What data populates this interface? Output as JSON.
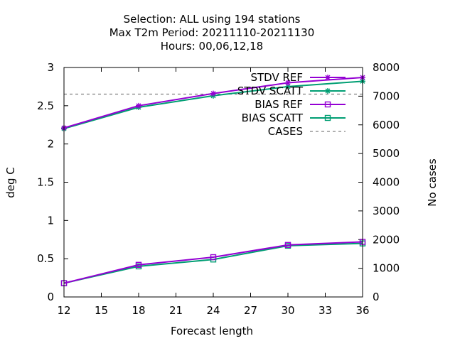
{
  "chart_data": {
    "type": "line",
    "title_lines": [
      "Selection: ALL using   194 stations",
      "Max T2m   Period: 20211110-20211130",
      "Hours:  00,06,12,18"
    ],
    "xlabel": "Forecast length",
    "ylabel": "deg C",
    "y2label": "No cases",
    "xlim": [
      12,
      36
    ],
    "ylim": [
      0,
      3
    ],
    "y2lim": [
      0,
      8000
    ],
    "xticks": [
      "12",
      "15",
      "18",
      "21",
      "24",
      "27",
      "30",
      "33",
      "36"
    ],
    "yticks": [
      "0",
      "0.5",
      "1",
      "1.5",
      "2",
      "2.5",
      "3"
    ],
    "y2ticks": [
      "0",
      "1000",
      "2000",
      "3000",
      "4000",
      "5000",
      "6000",
      "7000",
      "8000"
    ],
    "legend_position": "top-right",
    "x": [
      12,
      18,
      24,
      30,
      36
    ],
    "series": [
      {
        "name": "STDV REF",
        "axis": "y",
        "color": "#9400d3",
        "marker": "star",
        "values": [
          2.21,
          2.5,
          2.66,
          2.8,
          2.87
        ]
      },
      {
        "name": "STDV SCATT",
        "axis": "y",
        "color": "#009e73",
        "marker": "star",
        "values": [
          2.2,
          2.48,
          2.63,
          2.75,
          2.82
        ]
      },
      {
        "name": "BIAS REF",
        "axis": "y",
        "color": "#9400d3",
        "marker": "square",
        "values": [
          0.18,
          0.42,
          0.52,
          0.68,
          0.72
        ]
      },
      {
        "name": "BIAS SCATT",
        "axis": "y",
        "color": "#009e73",
        "marker": "square",
        "values": [
          0.18,
          0.4,
          0.49,
          0.67,
          0.7
        ]
      },
      {
        "name": "CASES",
        "axis": "y2",
        "color": "#808080",
        "marker": "none",
        "dash": true,
        "values": [
          7070,
          7070,
          7070,
          7070,
          7070
        ]
      }
    ]
  }
}
